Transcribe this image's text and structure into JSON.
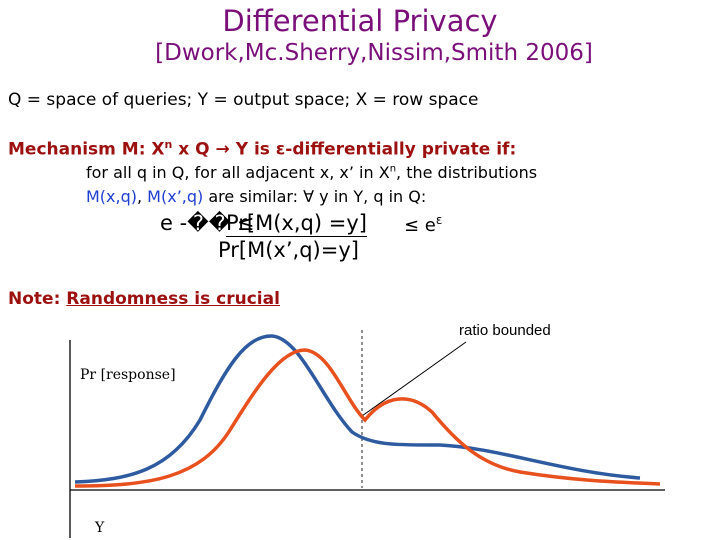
{
  "slide": {
    "title": "Differential Privacy",
    "subtitle": "[Dwork,Mc.Sherry,Nissim,Smith 2006]",
    "definitions": "Q = space of queries; Y = output space; X = row space",
    "mechanism": {
      "prefix": "Mechanism M: X",
      "sup": "n",
      "suffix": " x Q → Y is ε-differentially private if:",
      "line2_prefix": "for all q in Q, for all adjacent x, x’ in X",
      "line2_sup": "n",
      "line2_suffix": ", the distributions",
      "m1": "M(x,q)",
      "sep": ", ",
      "m2": "M(x’,q)",
      "line3_suffix": " are similar:  ∀ y in Y, q in Q:"
    },
    "formula": {
      "left": "e -�� ≤",
      "numerator": "Pr[M(x,q) =y]",
      "right": "≤ e",
      "right_sup": "ε",
      "denominator": "Pr[M(x’,q)=y]"
    },
    "note": {
      "label": "Note: ",
      "body": "Randomness is crucial"
    },
    "graph": {
      "ratio_label": "ratio bounded",
      "y_label": "Pr [response]",
      "x_label": "Y",
      "colors": {
        "curve1": "#2e5aa0",
        "curve2": "#e8501e",
        "axis": "#000000",
        "divider": "#555555"
      }
    }
  }
}
